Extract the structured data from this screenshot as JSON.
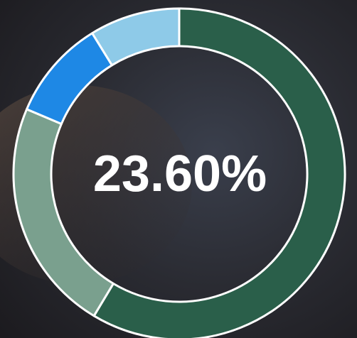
{
  "chart_data": {
    "type": "donut",
    "center_label": "23.60%",
    "values": [
      58.6,
      22.8,
      9.8,
      8.8
    ],
    "colors": [
      "#2a5f4a",
      "#7aa08e",
      "#1e88e5",
      "#8ecae8"
    ]
  }
}
